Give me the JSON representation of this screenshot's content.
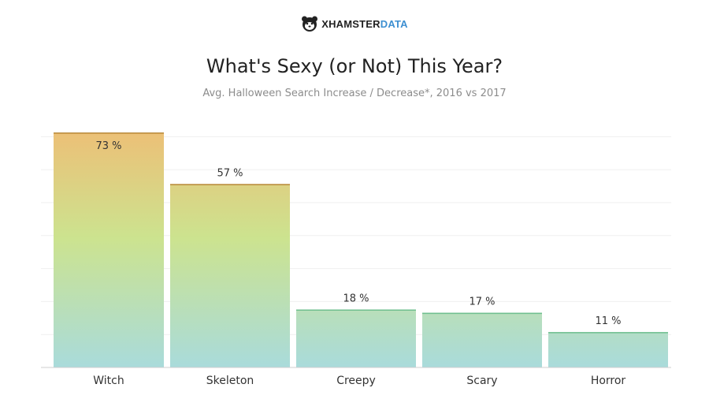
{
  "brand": {
    "name_part1": "XHAMSTER",
    "name_part2": "DATA",
    "logo_icon": "hamster-icon"
  },
  "chart_data": {
    "type": "bar",
    "title": "What's Sexy (or Not) This Year?",
    "subtitle": "Avg. Halloween Search Increase / Decrease*, 2016 vs 2017",
    "categories": [
      "Witch",
      "Skeleton",
      "Creepy",
      "Scary",
      "Horror"
    ],
    "values": [
      73,
      57,
      18,
      17,
      11
    ],
    "value_labels": [
      "73 %",
      "57 %",
      "18 %",
      "17 %",
      "11 %"
    ],
    "ylim": [
      0,
      73
    ],
    "grid": true,
    "colors": {
      "top": "#ecc077",
      "middle": "#cce38f",
      "bottom": "#a9dbdb",
      "edge_high": "#b8893a",
      "edge_low": "#6fbf8f"
    }
  }
}
